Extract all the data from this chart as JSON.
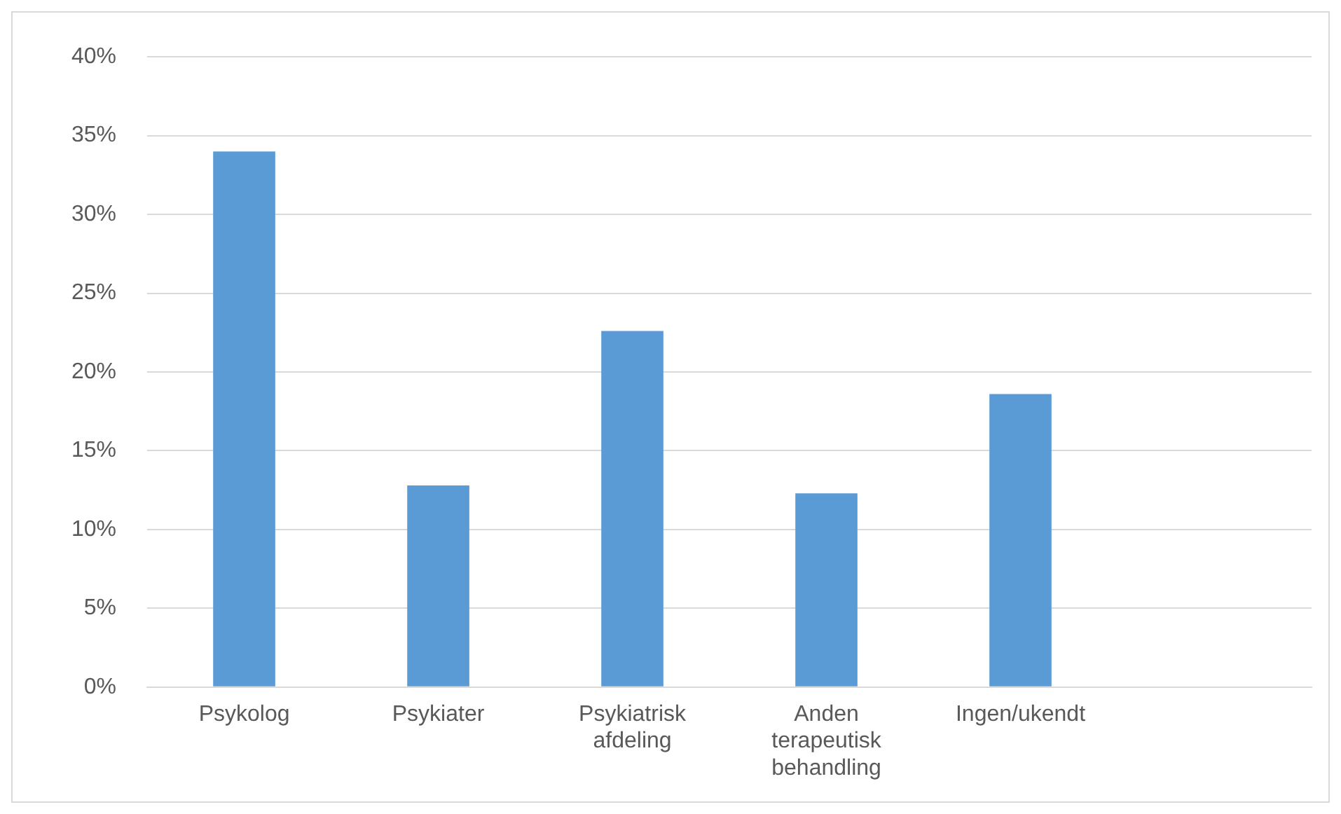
{
  "chart_data": {
    "type": "bar",
    "categories": [
      "Psykolog",
      "Psykiater",
      "Psykiatrisk afdeling",
      "Anden terapeutisk behandling",
      "Ingen/ukendt",
      null
    ],
    "values": [
      34,
      12.8,
      22.6,
      12.3,
      18.6,
      null
    ],
    "color": "#5b9bd5",
    "ylim": [
      0,
      40
    ],
    "yticks": [
      {
        "value": 0,
        "label": "0%"
      },
      {
        "value": 5,
        "label": "5%"
      },
      {
        "value": 10,
        "label": "10%"
      },
      {
        "value": 15,
        "label": "15%"
      },
      {
        "value": 20,
        "label": "20%"
      },
      {
        "value": 25,
        "label": "25%"
      },
      {
        "value": 30,
        "label": "30%"
      },
      {
        "value": 35,
        "label": "35%"
      },
      {
        "value": 40,
        "label": "40%"
      }
    ],
    "grid": "y",
    "legend": false
  }
}
